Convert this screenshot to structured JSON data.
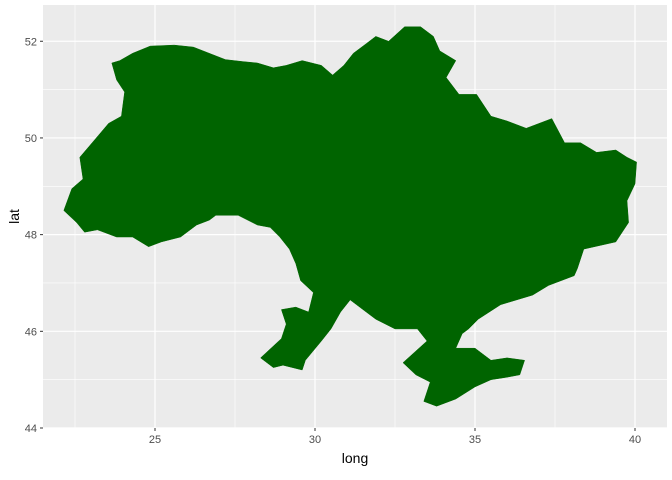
{
  "chart_data": {
    "type": "map",
    "xlabel": "long",
    "ylabel": "lat",
    "xlim": [
      21.5,
      41.0
    ],
    "ylim": [
      44.0,
      52.75
    ],
    "x_ticks": [
      25,
      30,
      35,
      40
    ],
    "y_ticks": [
      44,
      46,
      48,
      50,
      52
    ],
    "x_tick_labels": [
      "25",
      "30",
      "35",
      "40"
    ],
    "y_tick_labels": [
      "44",
      "46",
      "48",
      "50",
      "52"
    ],
    "grid": true,
    "panel_background": "#ebebeb",
    "grid_major_color": "#ffffff",
    "fill_color": "#006400",
    "region": {
      "outline": [
        [
          22.15,
          48.5
        ],
        [
          22.4,
          48.95
        ],
        [
          22.75,
          49.15
        ],
        [
          22.65,
          49.6
        ],
        [
          23.1,
          49.95
        ],
        [
          23.55,
          50.3
        ],
        [
          23.95,
          50.45
        ],
        [
          24.05,
          50.95
        ],
        [
          23.8,
          51.2
        ],
        [
          23.65,
          51.55
        ],
        [
          23.9,
          51.6
        ],
        [
          24.3,
          51.75
        ],
        [
          24.85,
          51.9
        ],
        [
          25.6,
          51.92
        ],
        [
          26.2,
          51.88
        ],
        [
          27.2,
          51.62
        ],
        [
          27.75,
          51.58
        ],
        [
          28.2,
          51.55
        ],
        [
          28.7,
          51.45
        ],
        [
          29.1,
          51.5
        ],
        [
          29.6,
          51.6
        ],
        [
          30.2,
          51.5
        ],
        [
          30.55,
          51.3
        ],
        [
          30.9,
          51.5
        ],
        [
          31.2,
          51.75
        ],
        [
          31.6,
          51.95
        ],
        [
          31.9,
          52.1
        ],
        [
          32.3,
          52.0
        ],
        [
          32.8,
          52.3
        ],
        [
          33.3,
          52.3
        ],
        [
          33.7,
          52.1
        ],
        [
          33.9,
          51.8
        ],
        [
          34.4,
          51.6
        ],
        [
          34.1,
          51.25
        ],
        [
          34.5,
          50.9
        ],
        [
          35.05,
          50.9
        ],
        [
          35.5,
          50.45
        ],
        [
          36.0,
          50.35
        ],
        [
          36.6,
          50.2
        ],
        [
          37.4,
          50.4
        ],
        [
          37.8,
          49.9
        ],
        [
          38.3,
          49.9
        ],
        [
          38.8,
          49.7
        ],
        [
          39.4,
          49.75
        ],
        [
          39.75,
          49.6
        ],
        [
          40.05,
          49.5
        ],
        [
          40.0,
          49.05
        ],
        [
          39.75,
          48.7
        ],
        [
          39.8,
          48.25
        ],
        [
          39.4,
          47.85
        ],
        [
          38.4,
          47.7
        ],
        [
          38.2,
          47.3
        ],
        [
          38.1,
          47.15
        ],
        [
          37.3,
          46.95
        ],
        [
          36.8,
          46.75
        ],
        [
          35.8,
          46.55
        ],
        [
          35.1,
          46.25
        ],
        [
          34.8,
          46.05
        ],
        [
          34.6,
          45.95
        ],
        [
          34.4,
          45.65
        ],
        [
          35.0,
          45.65
        ],
        [
          35.5,
          45.4
        ],
        [
          36.0,
          45.45
        ],
        [
          36.55,
          45.4
        ],
        [
          36.4,
          45.1
        ],
        [
          36.0,
          45.05
        ],
        [
          35.5,
          45.0
        ],
        [
          35.0,
          44.85
        ],
        [
          34.4,
          44.6
        ],
        [
          33.8,
          44.45
        ],
        [
          33.4,
          44.55
        ],
        [
          33.6,
          44.95
        ],
        [
          33.15,
          45.1
        ],
        [
          32.75,
          45.35
        ],
        [
          33.5,
          45.8
        ],
        [
          33.2,
          46.05
        ],
        [
          32.5,
          46.05
        ],
        [
          31.9,
          46.25
        ],
        [
          31.6,
          46.4
        ],
        [
          31.1,
          46.65
        ],
        [
          30.8,
          46.4
        ],
        [
          30.5,
          46.05
        ],
        [
          30.2,
          45.8
        ],
        [
          29.7,
          45.4
        ],
        [
          29.6,
          45.2
        ],
        [
          29.0,
          45.3
        ],
        [
          28.7,
          45.25
        ],
        [
          28.3,
          45.45
        ],
        [
          28.95,
          45.85
        ],
        [
          29.1,
          46.15
        ],
        [
          28.95,
          46.45
        ],
        [
          29.4,
          46.5
        ],
        [
          29.8,
          46.4
        ],
        [
          29.95,
          46.8
        ],
        [
          29.55,
          47.05
        ],
        [
          29.4,
          47.4
        ],
        [
          29.2,
          47.7
        ],
        [
          28.9,
          47.95
        ],
        [
          28.6,
          48.15
        ],
        [
          28.2,
          48.2
        ],
        [
          27.6,
          48.4
        ],
        [
          26.9,
          48.4
        ],
        [
          26.7,
          48.3
        ],
        [
          26.3,
          48.2
        ],
        [
          25.8,
          47.95
        ],
        [
          25.2,
          47.85
        ],
        [
          24.8,
          47.75
        ],
        [
          24.3,
          47.95
        ],
        [
          23.8,
          47.95
        ],
        [
          23.2,
          48.1
        ],
        [
          22.8,
          48.05
        ],
        [
          22.55,
          48.25
        ]
      ]
    }
  }
}
